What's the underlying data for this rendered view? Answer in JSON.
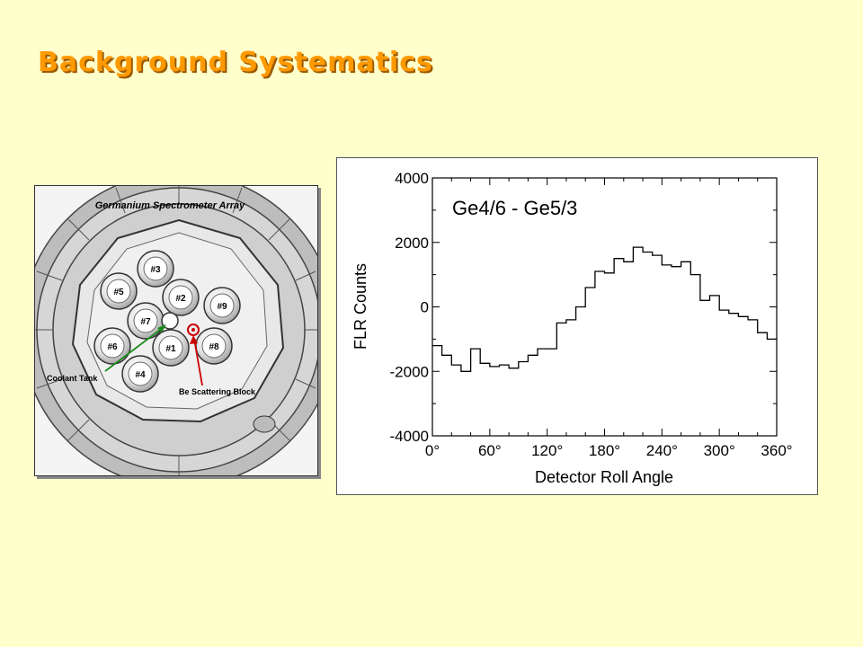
{
  "slide": {
    "title": "Background Systematics"
  },
  "figure": {
    "title": "Germanium Spectrometer Array",
    "detectors": [
      "#3",
      "#5",
      "#2",
      "#9",
      "#7",
      "#6",
      "#1",
      "#8",
      "#4"
    ],
    "callouts": {
      "coolant": "Coolant Tank",
      "scatter": "Be Scattering Block"
    },
    "colors": {
      "coolant_arrow": "#1a8a1a",
      "scatter_arrow": "#cc0000"
    }
  },
  "chart_data": {
    "type": "line",
    "style": "step",
    "annotation": "Ge4/6 - Ge5/3",
    "xlabel": "Detector Roll Angle",
    "ylabel": "FLR Counts",
    "xlim": [
      0,
      360
    ],
    "ylim": [
      -4000,
      4000
    ],
    "x_ticks": [
      "0°",
      "60°",
      "120°",
      "180°",
      "240°",
      "300°",
      "360°"
    ],
    "y_ticks": [
      "4000",
      "2000",
      "0",
      "-2000",
      "-4000"
    ],
    "bin_width": 10,
    "x": [
      0,
      10,
      20,
      30,
      40,
      50,
      60,
      70,
      80,
      90,
      100,
      110,
      120,
      130,
      140,
      150,
      160,
      170,
      180,
      190,
      200,
      210,
      220,
      230,
      240,
      250,
      260,
      270,
      280,
      290,
      300,
      310,
      320,
      330,
      340,
      350
    ],
    "values": [
      -1200,
      -1500,
      -1800,
      -2000,
      -1300,
      -1750,
      -1850,
      -1800,
      -1900,
      -1700,
      -1500,
      -1300,
      -1300,
      -500,
      -400,
      0,
      600,
      1100,
      1050,
      1500,
      1400,
      1850,
      1700,
      1600,
      1300,
      1250,
      1400,
      1000,
      200,
      350,
      -100,
      -200,
      -300,
      -400,
      -800,
      -1000
    ],
    "colors": {
      "line": "#000000",
      "frame": "#000000"
    }
  }
}
